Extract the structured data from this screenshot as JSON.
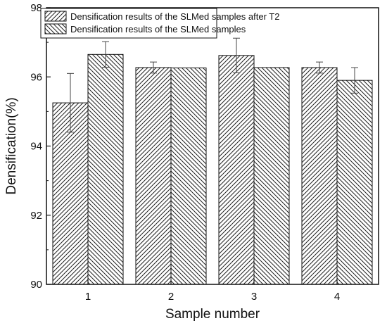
{
  "chart_data": {
    "type": "bar",
    "categories": [
      "1",
      "2",
      "3",
      "4"
    ],
    "series": [
      {
        "name": "Densification results of the SLMed samples after T2",
        "values": [
          95.25,
          96.27,
          96.62,
          96.27
        ],
        "errors": [
          0.85,
          0.16,
          0.5,
          0.16
        ],
        "hatch": "right-diagonal"
      },
      {
        "name": "Densification results of the SLMed samples",
        "values": [
          96.65,
          96.26,
          96.27,
          95.9
        ],
        "errors": [
          0.37,
          0,
          0,
          0.37
        ],
        "hatch": "left-diagonal"
      }
    ],
    "xlabel": "Sample number",
    "ylabel": "Densification(%)",
    "ylim": [
      90,
      98
    ],
    "yticks": [
      "90",
      "92",
      "94",
      "96",
      "98"
    ],
    "grid": false,
    "legend": "top-left"
  }
}
